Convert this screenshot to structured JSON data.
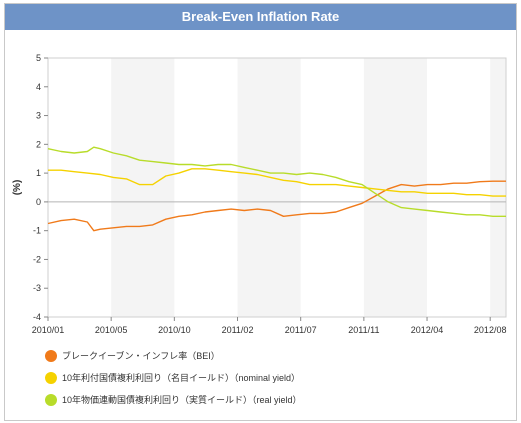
{
  "chart_data": {
    "type": "line",
    "title": "Break-Even Inflation Rate",
    "ylabel": "(%)",
    "xlabel": "",
    "ylim": [
      -4,
      5
    ],
    "yticks": [
      -4,
      -3,
      -2,
      -1,
      0,
      1,
      2,
      3,
      4,
      5
    ],
    "x_ticks": [
      "2010/01",
      "2010/05",
      "2010/10",
      "2011/02",
      "2011/07",
      "2011/11",
      "2012/04",
      "2012/08"
    ],
    "grid": "vertical bands",
    "legend_position": "bottom",
    "series": [
      {
        "name": "ブレークイーブン・インフレ率（BEI）",
        "color": "#f07a1a",
        "points": [
          [
            0,
            -0.75
          ],
          [
            1,
            -0.65
          ],
          [
            2,
            -0.6
          ],
          [
            3,
            -0.7
          ],
          [
            3.5,
            -1.0
          ],
          [
            4,
            -0.95
          ],
          [
            5,
            -0.9
          ],
          [
            6,
            -0.85
          ],
          [
            7,
            -0.85
          ],
          [
            8,
            -0.8
          ],
          [
            9,
            -0.6
          ],
          [
            10,
            -0.5
          ],
          [
            11,
            -0.45
          ],
          [
            12,
            -0.35
          ],
          [
            13,
            -0.3
          ],
          [
            14,
            -0.25
          ],
          [
            15,
            -0.3
          ],
          [
            16,
            -0.25
          ],
          [
            17,
            -0.3
          ],
          [
            18,
            -0.5
          ],
          [
            19,
            -0.45
          ],
          [
            20,
            -0.4
          ],
          [
            21,
            -0.4
          ],
          [
            22,
            -0.35
          ],
          [
            23,
            -0.2
          ],
          [
            24,
            -0.05
          ],
          [
            25,
            0.2
          ],
          [
            26,
            0.45
          ],
          [
            27,
            0.6
          ],
          [
            28,
            0.55
          ],
          [
            29,
            0.6
          ],
          [
            30,
            0.6
          ],
          [
            31,
            0.65
          ],
          [
            32,
            0.65
          ],
          [
            33,
            0.7
          ],
          [
            34,
            0.72
          ],
          [
            35,
            0.72
          ]
        ]
      },
      {
        "name": "10年利付国債複利利回り（名目イールド）（nominal yield）",
        "color": "#f5d200",
        "points": [
          [
            0,
            1.1
          ],
          [
            1,
            1.1
          ],
          [
            2,
            1.05
          ],
          [
            3,
            1.0
          ],
          [
            4,
            0.95
          ],
          [
            5,
            0.85
          ],
          [
            6,
            0.8
          ],
          [
            7,
            0.6
          ],
          [
            8,
            0.6
          ],
          [
            9,
            0.9
          ],
          [
            10,
            1.0
          ],
          [
            11,
            1.15
          ],
          [
            12,
            1.15
          ],
          [
            13,
            1.1
          ],
          [
            14,
            1.05
          ],
          [
            15,
            1.0
          ],
          [
            16,
            0.95
          ],
          [
            17,
            0.85
          ],
          [
            18,
            0.75
          ],
          [
            19,
            0.7
          ],
          [
            20,
            0.6
          ],
          [
            21,
            0.6
          ],
          [
            22,
            0.6
          ],
          [
            23,
            0.55
          ],
          [
            24,
            0.5
          ],
          [
            25,
            0.45
          ],
          [
            26,
            0.4
          ],
          [
            27,
            0.35
          ],
          [
            28,
            0.35
          ],
          [
            29,
            0.3
          ],
          [
            30,
            0.3
          ],
          [
            31,
            0.3
          ],
          [
            32,
            0.25
          ],
          [
            33,
            0.25
          ],
          [
            34,
            0.2
          ],
          [
            35,
            0.2
          ]
        ]
      },
      {
        "name": "10年物価連動国債複利利回り（実質イールド）（real yield）",
        "color": "#b8dc2a",
        "points": [
          [
            0,
            1.85
          ],
          [
            1,
            1.75
          ],
          [
            2,
            1.7
          ],
          [
            3,
            1.75
          ],
          [
            3.5,
            1.9
          ],
          [
            4,
            1.85
          ],
          [
            5,
            1.7
          ],
          [
            6,
            1.6
          ],
          [
            7,
            1.45
          ],
          [
            8,
            1.4
          ],
          [
            9,
            1.35
          ],
          [
            10,
            1.3
          ],
          [
            11,
            1.3
          ],
          [
            12,
            1.25
          ],
          [
            13,
            1.3
          ],
          [
            14,
            1.3
          ],
          [
            15,
            1.2
          ],
          [
            16,
            1.1
          ],
          [
            17,
            1.0
          ],
          [
            18,
            1.0
          ],
          [
            19,
            0.95
          ],
          [
            20,
            1.0
          ],
          [
            21,
            0.95
          ],
          [
            22,
            0.85
          ],
          [
            23,
            0.7
          ],
          [
            24,
            0.6
          ],
          [
            25,
            0.3
          ],
          [
            26,
            0.0
          ],
          [
            27,
            -0.2
          ],
          [
            28,
            -0.25
          ],
          [
            29,
            -0.3
          ],
          [
            30,
            -0.35
          ],
          [
            31,
            -0.4
          ],
          [
            32,
            -0.45
          ],
          [
            33,
            -0.45
          ],
          [
            34,
            -0.5
          ],
          [
            35,
            -0.5
          ]
        ]
      }
    ]
  }
}
